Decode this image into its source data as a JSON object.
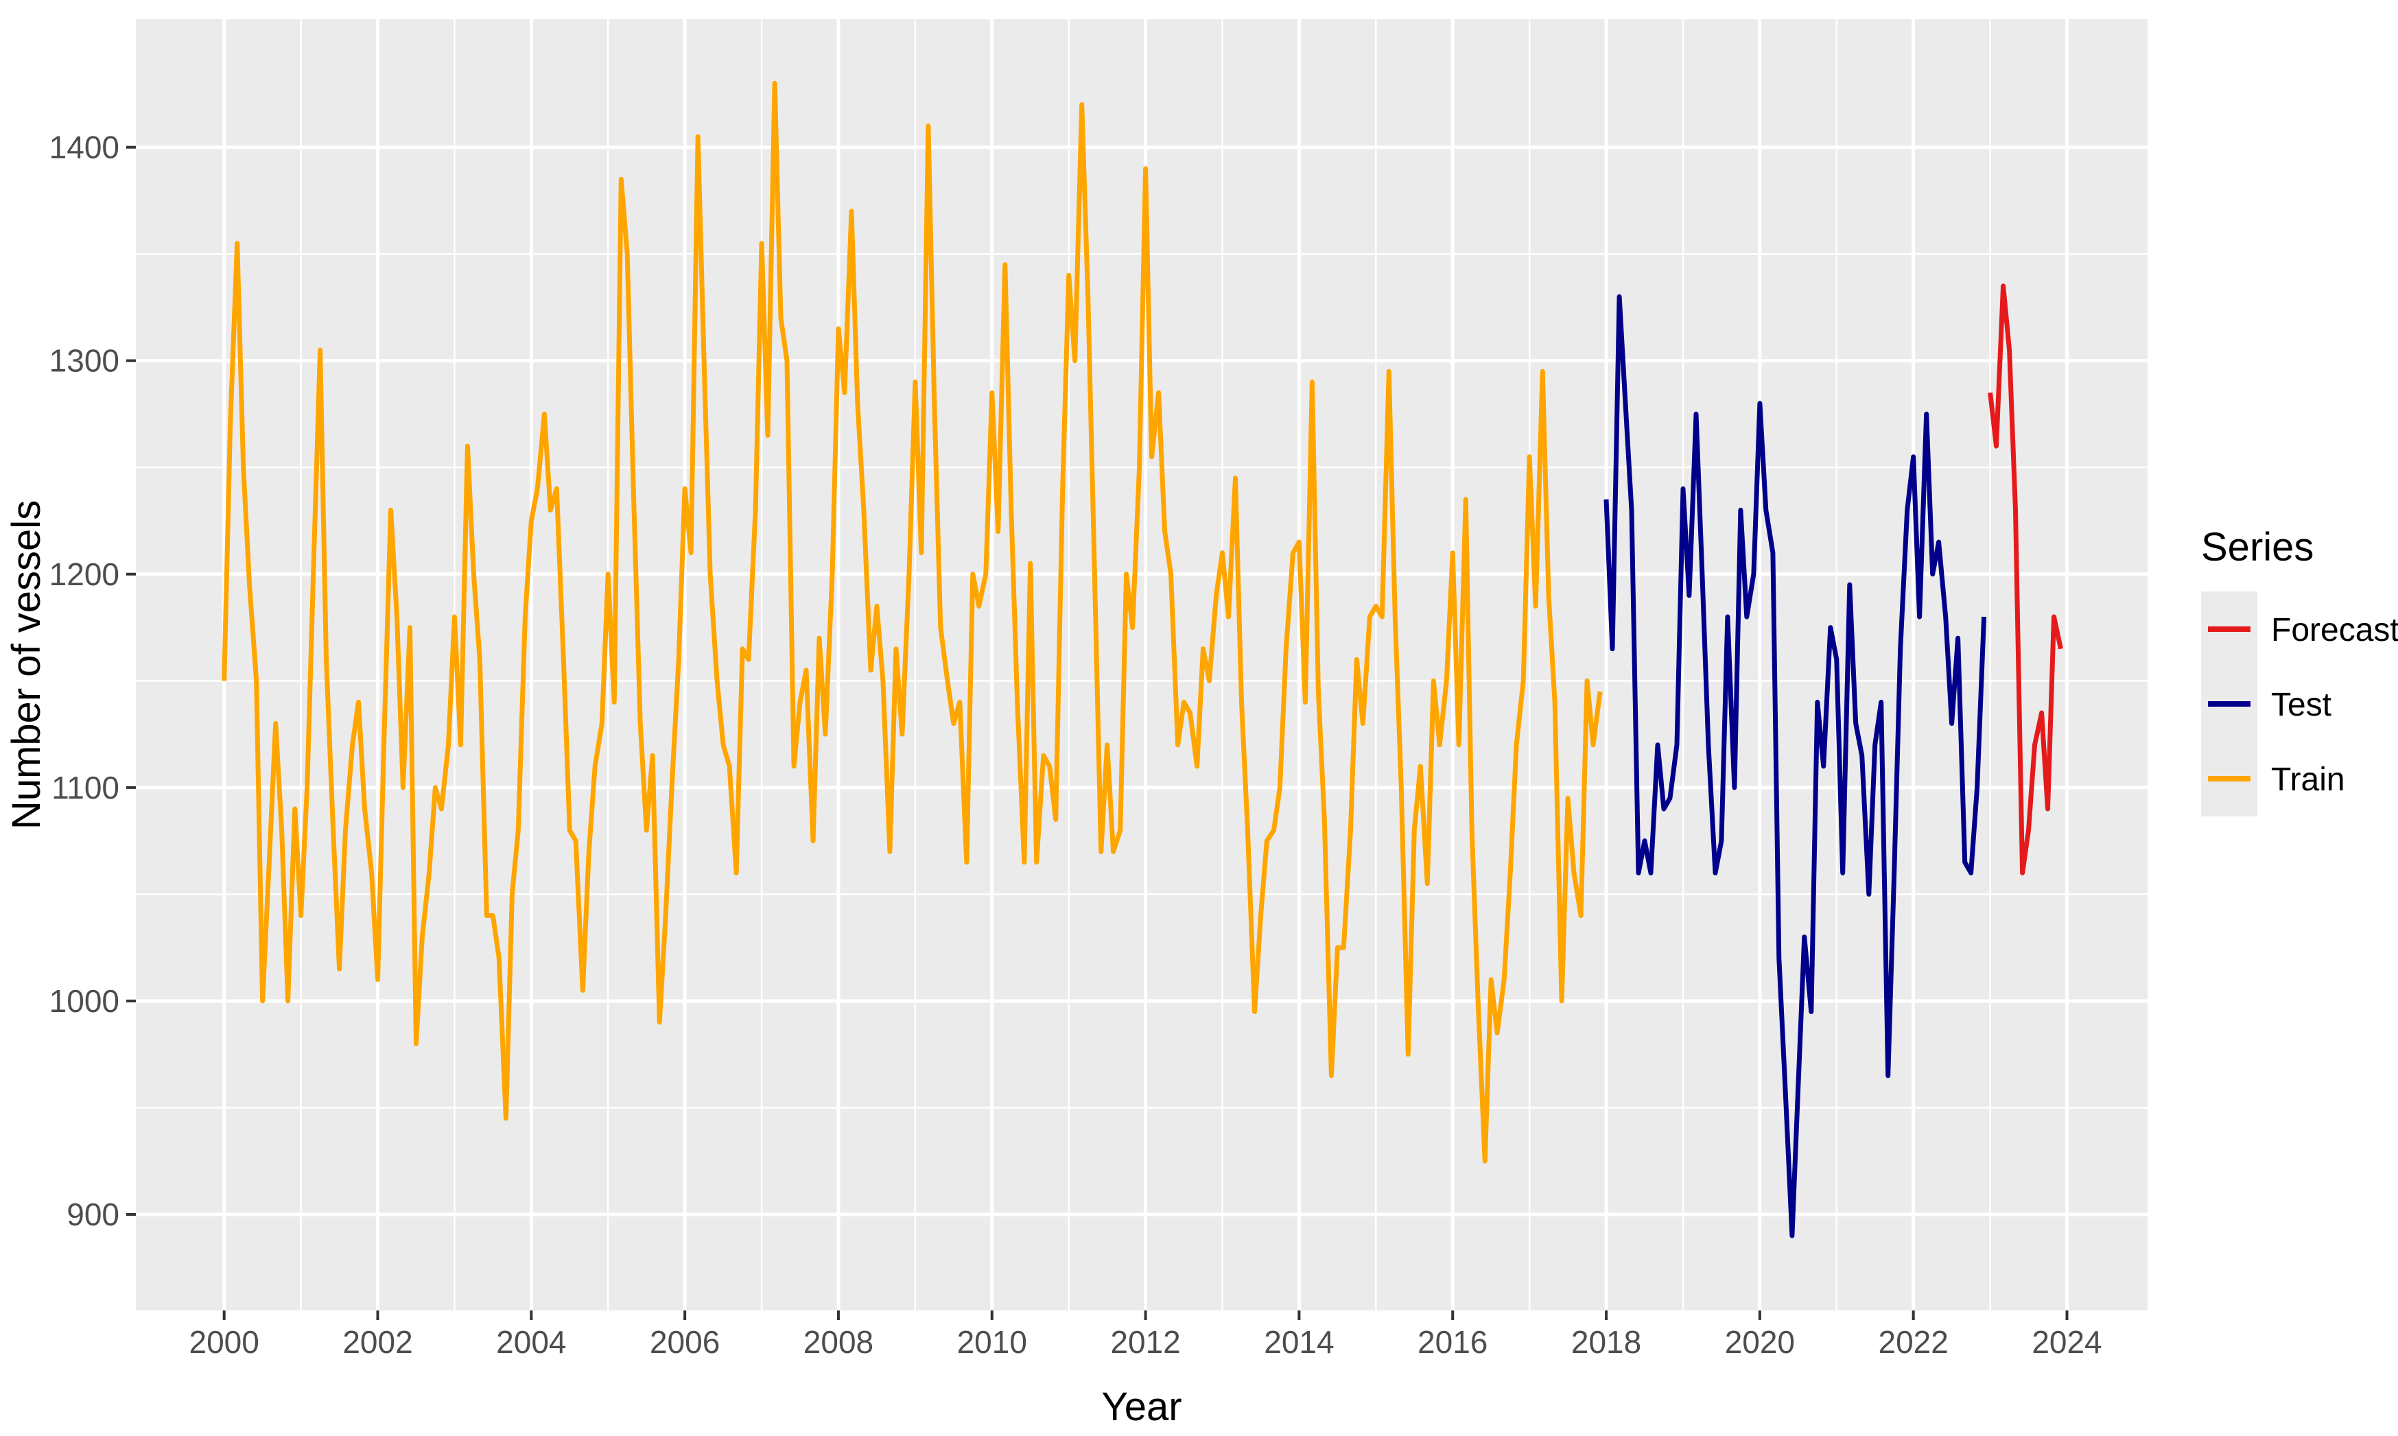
{
  "chart_data": {
    "type": "line",
    "xlabel": "Year",
    "ylabel": "Number of vessels",
    "xlim": [
      1998.85,
      2025.05
    ],
    "ylim": [
      855,
      1460
    ],
    "x_ticks": [
      "2000",
      "2002",
      "2004",
      "2006",
      "2008",
      "2010",
      "2012",
      "2014",
      "2016",
      "2018",
      "2020",
      "2022",
      "2024"
    ],
    "y_ticks": [
      "900",
      "1000",
      "1100",
      "1200",
      "1300",
      "1400"
    ],
    "grid": true,
    "legend": {
      "title": "Series",
      "position": "right"
    },
    "series": [
      {
        "name": "Forecast",
        "color": "#e41a1c",
        "points": [
          [
            2023.0,
            1285
          ],
          [
            2023.08,
            1260
          ],
          [
            2023.17,
            1335
          ],
          [
            2023.25,
            1305
          ],
          [
            2023.33,
            1230
          ],
          [
            2023.42,
            1060
          ],
          [
            2023.5,
            1080
          ],
          [
            2023.58,
            1120
          ],
          [
            2023.67,
            1135
          ],
          [
            2023.75,
            1090
          ],
          [
            2023.83,
            1180
          ],
          [
            2023.92,
            1165
          ]
        ]
      },
      {
        "name": "Test",
        "color": "#00008b",
        "points": [
          [
            2018.0,
            1235
          ],
          [
            2018.08,
            1165
          ],
          [
            2018.17,
            1330
          ],
          [
            2018.25,
            1280
          ],
          [
            2018.33,
            1230
          ],
          [
            2018.42,
            1060
          ],
          [
            2018.5,
            1075
          ],
          [
            2018.58,
            1060
          ],
          [
            2018.67,
            1120
          ],
          [
            2018.75,
            1090
          ],
          [
            2018.83,
            1095
          ],
          [
            2018.92,
            1120
          ],
          [
            2019.0,
            1240
          ],
          [
            2019.08,
            1190
          ],
          [
            2019.17,
            1275
          ],
          [
            2019.25,
            1200
          ],
          [
            2019.33,
            1120
          ],
          [
            2019.42,
            1060
          ],
          [
            2019.5,
            1075
          ],
          [
            2019.58,
            1180
          ],
          [
            2019.67,
            1100
          ],
          [
            2019.75,
            1230
          ],
          [
            2019.83,
            1180
          ],
          [
            2019.92,
            1200
          ],
          [
            2020.0,
            1280
          ],
          [
            2020.08,
            1230
          ],
          [
            2020.17,
            1210
          ],
          [
            2020.25,
            1020
          ],
          [
            2020.33,
            960
          ],
          [
            2020.42,
            890
          ],
          [
            2020.5,
            960
          ],
          [
            2020.58,
            1030
          ],
          [
            2020.67,
            995
          ],
          [
            2020.75,
            1140
          ],
          [
            2020.83,
            1110
          ],
          [
            2020.92,
            1175
          ],
          [
            2021.0,
            1160
          ],
          [
            2021.08,
            1060
          ],
          [
            2021.17,
            1195
          ],
          [
            2021.25,
            1130
          ],
          [
            2021.33,
            1115
          ],
          [
            2021.42,
            1050
          ],
          [
            2021.5,
            1120
          ],
          [
            2021.58,
            1140
          ],
          [
            2021.67,
            965
          ],
          [
            2021.75,
            1060
          ],
          [
            2021.83,
            1165
          ],
          [
            2021.92,
            1230
          ],
          [
            2022.0,
            1255
          ],
          [
            2022.08,
            1180
          ],
          [
            2022.17,
            1275
          ],
          [
            2022.25,
            1200
          ],
          [
            2022.33,
            1215
          ],
          [
            2022.42,
            1180
          ],
          [
            2022.5,
            1130
          ],
          [
            2022.58,
            1170
          ],
          [
            2022.67,
            1065
          ],
          [
            2022.75,
            1060
          ],
          [
            2022.83,
            1100
          ],
          [
            2022.92,
            1180
          ]
        ]
      },
      {
        "name": "Train",
        "color": "#ffa500",
        "points": [
          [
            2000.0,
            1150
          ],
          [
            2000.08,
            1270
          ],
          [
            2000.17,
            1355
          ],
          [
            2000.25,
            1250
          ],
          [
            2000.33,
            1195
          ],
          [
            2000.42,
            1150
          ],
          [
            2000.5,
            1000
          ],
          [
            2000.58,
            1060
          ],
          [
            2000.67,
            1130
          ],
          [
            2000.75,
            1080
          ],
          [
            2000.83,
            1000
          ],
          [
            2000.92,
            1090
          ],
          [
            2001.0,
            1040
          ],
          [
            2001.08,
            1100
          ],
          [
            2001.17,
            1210
          ],
          [
            2001.25,
            1305
          ],
          [
            2001.33,
            1160
          ],
          [
            2001.42,
            1080
          ],
          [
            2001.5,
            1015
          ],
          [
            2001.58,
            1080
          ],
          [
            2001.67,
            1120
          ],
          [
            2001.75,
            1140
          ],
          [
            2001.83,
            1090
          ],
          [
            2001.92,
            1060
          ],
          [
            2002.0,
            1010
          ],
          [
            2002.08,
            1120
          ],
          [
            2002.17,
            1230
          ],
          [
            2002.25,
            1180
          ],
          [
            2002.33,
            1100
          ],
          [
            2002.42,
            1175
          ],
          [
            2002.5,
            980
          ],
          [
            2002.58,
            1030
          ],
          [
            2002.67,
            1060
          ],
          [
            2002.75,
            1100
          ],
          [
            2002.83,
            1090
          ],
          [
            2002.92,
            1120
          ],
          [
            2003.0,
            1180
          ],
          [
            2003.08,
            1120
          ],
          [
            2003.17,
            1260
          ],
          [
            2003.25,
            1200
          ],
          [
            2003.33,
            1160
          ],
          [
            2003.42,
            1040
          ],
          [
            2003.5,
            1040
          ],
          [
            2003.58,
            1020
          ],
          [
            2003.67,
            945
          ],
          [
            2003.75,
            1050
          ],
          [
            2003.83,
            1080
          ],
          [
            2003.92,
            1180
          ],
          [
            2004.0,
            1225
          ],
          [
            2004.08,
            1240
          ],
          [
            2004.17,
            1275
          ],
          [
            2004.25,
            1230
          ],
          [
            2004.33,
            1240
          ],
          [
            2004.42,
            1160
          ],
          [
            2004.5,
            1080
          ],
          [
            2004.58,
            1075
          ],
          [
            2004.67,
            1005
          ],
          [
            2004.75,
            1070
          ],
          [
            2004.83,
            1110
          ],
          [
            2004.92,
            1130
          ],
          [
            2005.0,
            1200
          ],
          [
            2005.08,
            1140
          ],
          [
            2005.17,
            1385
          ],
          [
            2005.25,
            1350
          ],
          [
            2005.33,
            1240
          ],
          [
            2005.42,
            1130
          ],
          [
            2005.5,
            1080
          ],
          [
            2005.58,
            1115
          ],
          [
            2005.67,
            990
          ],
          [
            2005.75,
            1040
          ],
          [
            2005.83,
            1100
          ],
          [
            2005.92,
            1160
          ],
          [
            2006.0,
            1240
          ],
          [
            2006.08,
            1210
          ],
          [
            2006.17,
            1405
          ],
          [
            2006.25,
            1300
          ],
          [
            2006.33,
            1200
          ],
          [
            2006.42,
            1150
          ],
          [
            2006.5,
            1120
          ],
          [
            2006.58,
            1110
          ],
          [
            2006.67,
            1060
          ],
          [
            2006.75,
            1165
          ],
          [
            2006.83,
            1160
          ],
          [
            2006.92,
            1230
          ],
          [
            2007.0,
            1355
          ],
          [
            2007.08,
            1265
          ],
          [
            2007.17,
            1430
          ],
          [
            2007.25,
            1320
          ],
          [
            2007.33,
            1300
          ],
          [
            2007.42,
            1110
          ],
          [
            2007.5,
            1140
          ],
          [
            2007.58,
            1155
          ],
          [
            2007.67,
            1075
          ],
          [
            2007.75,
            1170
          ],
          [
            2007.83,
            1125
          ],
          [
            2007.92,
            1200
          ],
          [
            2008.0,
            1315
          ],
          [
            2008.08,
            1285
          ],
          [
            2008.17,
            1370
          ],
          [
            2008.25,
            1280
          ],
          [
            2008.33,
            1230
          ],
          [
            2008.42,
            1155
          ],
          [
            2008.5,
            1185
          ],
          [
            2008.58,
            1150
          ],
          [
            2008.67,
            1070
          ],
          [
            2008.75,
            1165
          ],
          [
            2008.83,
            1125
          ],
          [
            2008.92,
            1200
          ],
          [
            2009.0,
            1290
          ],
          [
            2009.08,
            1210
          ],
          [
            2009.17,
            1410
          ],
          [
            2009.25,
            1280
          ],
          [
            2009.33,
            1175
          ],
          [
            2009.42,
            1150
          ],
          [
            2009.5,
            1130
          ],
          [
            2009.58,
            1140
          ],
          [
            2009.67,
            1065
          ],
          [
            2009.75,
            1200
          ],
          [
            2009.83,
            1185
          ],
          [
            2009.92,
            1200
          ],
          [
            2010.0,
            1285
          ],
          [
            2010.08,
            1220
          ],
          [
            2010.17,
            1345
          ],
          [
            2010.25,
            1230
          ],
          [
            2010.33,
            1140
          ],
          [
            2010.42,
            1065
          ],
          [
            2010.5,
            1205
          ],
          [
            2010.58,
            1065
          ],
          [
            2010.67,
            1115
          ],
          [
            2010.75,
            1110
          ],
          [
            2010.83,
            1085
          ],
          [
            2010.92,
            1240
          ],
          [
            2011.0,
            1340
          ],
          [
            2011.08,
            1300
          ],
          [
            2011.17,
            1420
          ],
          [
            2011.25,
            1330
          ],
          [
            2011.33,
            1210
          ],
          [
            2011.42,
            1070
          ],
          [
            2011.5,
            1120
          ],
          [
            2011.58,
            1070
          ],
          [
            2011.67,
            1080
          ],
          [
            2011.75,
            1200
          ],
          [
            2011.83,
            1175
          ],
          [
            2011.92,
            1250
          ],
          [
            2012.0,
            1390
          ],
          [
            2012.08,
            1255
          ],
          [
            2012.17,
            1285
          ],
          [
            2012.25,
            1220
          ],
          [
            2012.33,
            1200
          ],
          [
            2012.42,
            1120
          ],
          [
            2012.5,
            1140
          ],
          [
            2012.58,
            1135
          ],
          [
            2012.67,
            1110
          ],
          [
            2012.75,
            1165
          ],
          [
            2012.83,
            1150
          ],
          [
            2012.92,
            1190
          ],
          [
            2013.0,
            1210
          ],
          [
            2013.08,
            1180
          ],
          [
            2013.17,
            1245
          ],
          [
            2013.25,
            1140
          ],
          [
            2013.33,
            1080
          ],
          [
            2013.42,
            995
          ],
          [
            2013.5,
            1040
          ],
          [
            2013.58,
            1075
          ],
          [
            2013.67,
            1080
          ],
          [
            2013.75,
            1100
          ],
          [
            2013.83,
            1165
          ],
          [
            2013.92,
            1210
          ],
          [
            2014.0,
            1215
          ],
          [
            2014.08,
            1140
          ],
          [
            2014.17,
            1290
          ],
          [
            2014.25,
            1145
          ],
          [
            2014.33,
            1085
          ],
          [
            2014.42,
            965
          ],
          [
            2014.5,
            1025
          ],
          [
            2014.58,
            1025
          ],
          [
            2014.67,
            1080
          ],
          [
            2014.75,
            1160
          ],
          [
            2014.83,
            1130
          ],
          [
            2014.92,
            1180
          ],
          [
            2015.0,
            1185
          ],
          [
            2015.08,
            1180
          ],
          [
            2015.17,
            1295
          ],
          [
            2015.25,
            1180
          ],
          [
            2015.33,
            1100
          ],
          [
            2015.42,
            975
          ],
          [
            2015.5,
            1080
          ],
          [
            2015.58,
            1110
          ],
          [
            2015.67,
            1055
          ],
          [
            2015.75,
            1150
          ],
          [
            2015.83,
            1120
          ],
          [
            2015.92,
            1150
          ],
          [
            2016.0,
            1210
          ],
          [
            2016.08,
            1120
          ],
          [
            2016.17,
            1235
          ],
          [
            2016.25,
            1080
          ],
          [
            2016.33,
            1000
          ],
          [
            2016.42,
            925
          ],
          [
            2016.5,
            1010
          ],
          [
            2016.58,
            985
          ],
          [
            2016.67,
            1010
          ],
          [
            2016.75,
            1060
          ],
          [
            2016.83,
            1120
          ],
          [
            2016.92,
            1150
          ],
          [
            2017.0,
            1255
          ],
          [
            2017.08,
            1185
          ],
          [
            2017.17,
            1295
          ],
          [
            2017.25,
            1190
          ],
          [
            2017.33,
            1140
          ],
          [
            2017.42,
            1000
          ],
          [
            2017.5,
            1095
          ],
          [
            2017.58,
            1060
          ],
          [
            2017.67,
            1040
          ],
          [
            2017.75,
            1150
          ],
          [
            2017.83,
            1120
          ],
          [
            2017.92,
            1145
          ]
        ]
      }
    ]
  }
}
